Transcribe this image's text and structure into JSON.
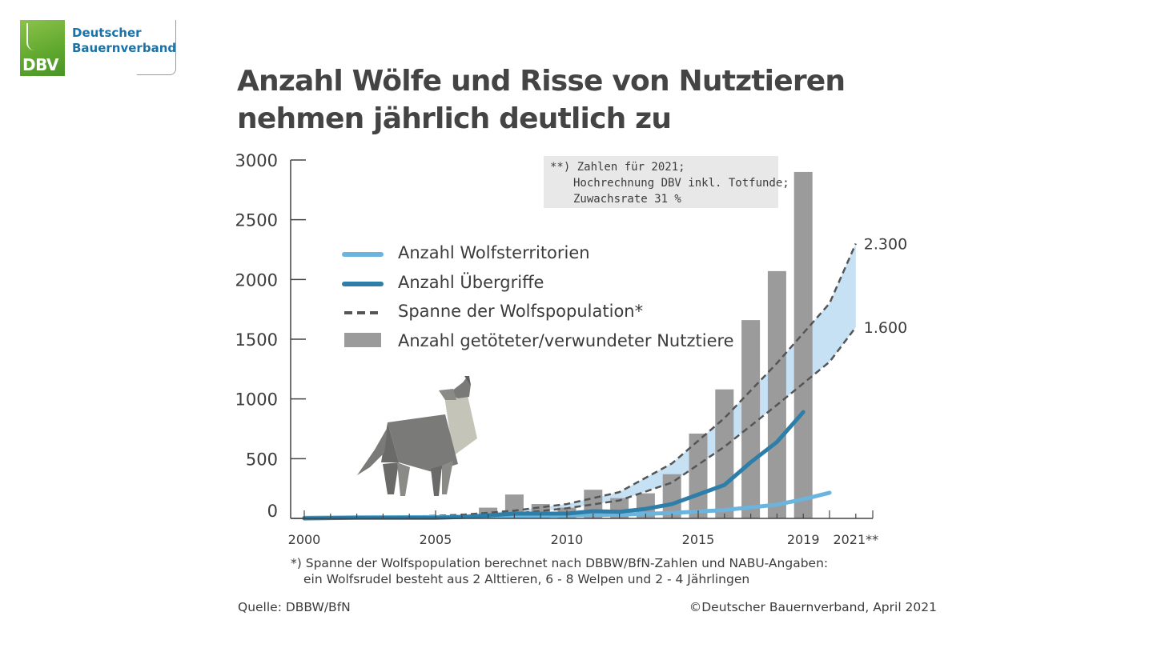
{
  "logo": {
    "abbr": "DBV",
    "line1": "Deutscher",
    "line2": "Bauernverband"
  },
  "title": {
    "line1": "Anzahl Wölfe und Risse von Nutztieren",
    "line2": "nehmen jährlich deutlich zu"
  },
  "footnote": {
    "line1": "*) Spanne der Wolfspopulation berechnet nach DBBW/BfN-Zahlen und NABU-Angaben:",
    "line2": "ein Wolfsrudel besteht aus 2 Alttieren, 6 - 8 Welpen und 2 - 4 Jährlingen"
  },
  "source": "Quelle: DBBW/BfN",
  "copyright": "©Deutscher Bauernverband, April 2021",
  "note": {
    "line1": "**) Zahlen für 2021;",
    "line2": "Hochrechnung DBV inkl. Totfunde;",
    "line3": "Zuwachsrate 31 %"
  },
  "colors": {
    "territories": "#6ab4dd",
    "attacks": "#2d7ea8",
    "range": "#555555",
    "range_fill": "#bcdcf2",
    "bars": "#9b9b9b",
    "axis": "#444444"
  },
  "icons": {
    "wolf": "wolf-howling-icon"
  },
  "chart_data": {
    "type": "bar",
    "ylim": [
      0,
      3000
    ],
    "yticks": [
      0,
      500,
      1000,
      1500,
      2000,
      2500,
      3000
    ],
    "xlim": [
      2000,
      2022
    ],
    "xtick_labels": [
      {
        "x": 2000,
        "label": "2000"
      },
      {
        "x": 2005,
        "label": "2005"
      },
      {
        "x": 2010,
        "label": "2010"
      },
      {
        "x": 2015,
        "label": "2015"
      },
      {
        "x": 2019,
        "label": "2019"
      },
      {
        "x": 2021,
        "label": "2021**"
      }
    ],
    "legend": {
      "placement": "top-left",
      "entries": [
        {
          "key": "territories",
          "label": "Anzahl Wolfsterritorien",
          "style": "line"
        },
        {
          "key": "attacks",
          "label": "Anzahl Übergriffe",
          "style": "line"
        },
        {
          "key": "range",
          "label": "Spanne der Wolfspopulation*",
          "style": "dashed"
        },
        {
          "key": "bars",
          "label": "Anzahl getöteter/verwundeter Nutztiere",
          "style": "bar"
        }
      ]
    },
    "bars": {
      "x": [
        2002,
        2003,
        2004,
        2005,
        2006,
        2007,
        2008,
        2009,
        2010,
        2011,
        2012,
        2013,
        2014,
        2015,
        2016,
        2017,
        2018,
        2019
      ],
      "values": [
        20,
        10,
        15,
        5,
        30,
        90,
        200,
        120,
        90,
        240,
        170,
        210,
        370,
        710,
        1080,
        1660,
        2070,
        2900
      ]
    },
    "territories": {
      "x": [
        2000,
        2002,
        2004,
        2006,
        2008,
        2010,
        2012,
        2014,
        2016,
        2018,
        2019,
        2020
      ],
      "values": [
        5,
        8,
        10,
        12,
        18,
        25,
        32,
        45,
        70,
        115,
        160,
        215
      ]
    },
    "attacks": {
      "x": [
        2000,
        2002,
        2004,
        2005,
        2006,
        2007,
        2008,
        2009,
        2010,
        2011,
        2012,
        2013,
        2014,
        2015,
        2016,
        2017,
        2018,
        2019
      ],
      "values": [
        0,
        5,
        5,
        5,
        12,
        25,
        40,
        40,
        40,
        60,
        55,
        80,
        120,
        200,
        280,
        470,
        640,
        890
      ]
    },
    "range_upper": {
      "x": [
        2000,
        2002,
        2004,
        2006,
        2008,
        2010,
        2012,
        2014,
        2016,
        2018,
        2020,
        2021
      ],
      "values": [
        5,
        10,
        15,
        30,
        65,
        120,
        220,
        460,
        840,
        1300,
        1800,
        2300
      ]
    },
    "range_lower": {
      "x": [
        2000,
        2002,
        2004,
        2006,
        2008,
        2010,
        2012,
        2014,
        2016,
        2018,
        2020,
        2021
      ],
      "values": [
        3,
        6,
        10,
        20,
        40,
        85,
        150,
        300,
        600,
        950,
        1310,
        1600
      ]
    },
    "annotations": [
      {
        "x": 2021,
        "y": 2300,
        "label": "2.300"
      },
      {
        "x": 2021,
        "y": 1600,
        "label": "1.600"
      }
    ]
  }
}
